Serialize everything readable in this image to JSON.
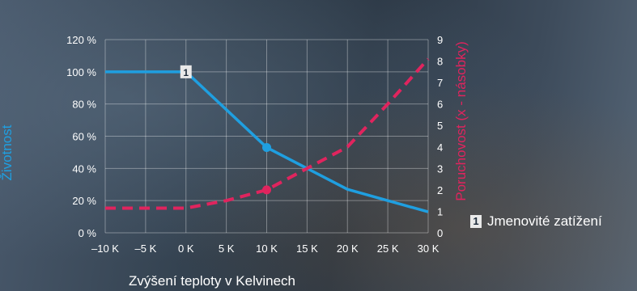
{
  "chart_data": {
    "type": "line",
    "xlabel": "Zvýšení teploty v Kelvinech",
    "x_tick_labels": [
      "–10 K",
      "–5 K",
      "0 K",
      "5 K",
      "10 K",
      "15 K",
      "20 K",
      "25 K",
      "30 K"
    ],
    "x": [
      -10,
      -5,
      0,
      5,
      10,
      15,
      20,
      25,
      30
    ],
    "y_left": {
      "label": "Životnost",
      "ylim": [
        0,
        120
      ],
      "tick_labels": [
        "0 %",
        "20 %",
        "40 %",
        "60 %",
        "80 %",
        "100 %",
        "120 %"
      ],
      "ticks": [
        0,
        20,
        40,
        60,
        80,
        100,
        120
      ]
    },
    "y_right": {
      "label": "Poruchovost (x - násobky)",
      "ylim": [
        0,
        9
      ],
      "tick_labels": [
        "0",
        "1",
        "2",
        "3",
        "4",
        "5",
        "6",
        "7",
        "8",
        "9"
      ],
      "ticks": [
        0,
        1,
        2,
        3,
        4,
        5,
        6,
        7,
        8,
        9
      ]
    },
    "grid": true,
    "series": [
      {
        "axis": "left",
        "style": "solid",
        "color": "#1f9fe0",
        "points": [
          [
            -10,
            100
          ],
          [
            0,
            100
          ],
          [
            10,
            53
          ],
          [
            15,
            40
          ],
          [
            20,
            27
          ],
          [
            25,
            20
          ],
          [
            30,
            13
          ]
        ],
        "marker_at": 10
      },
      {
        "axis": "right",
        "style": "dashed",
        "color": "#e0245e",
        "points": [
          [
            -10,
            1.15
          ],
          [
            0,
            1.15
          ],
          [
            5,
            1.5
          ],
          [
            10,
            2
          ],
          [
            15,
            3
          ],
          [
            20,
            4
          ],
          [
            25,
            6
          ],
          [
            30,
            8.1
          ]
        ],
        "marker_at": 10
      }
    ],
    "annotation": {
      "badge": "1",
      "x": 0,
      "y": 100
    },
    "legend": {
      "badge": "1",
      "text": "Jmenovité zatížení",
      "placement": "right"
    }
  }
}
